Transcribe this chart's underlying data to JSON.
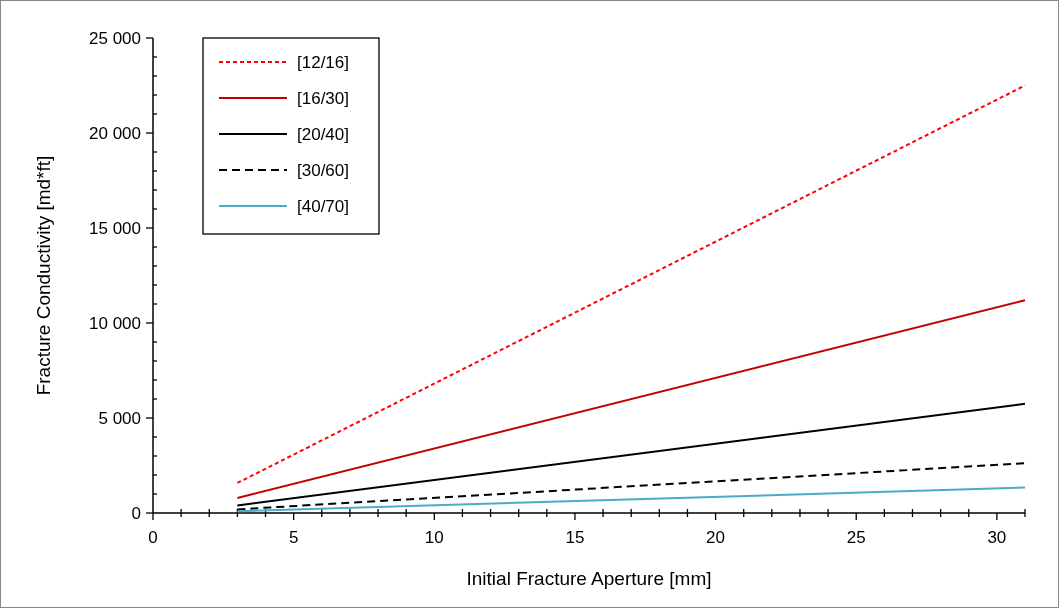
{
  "chart_data": {
    "type": "line",
    "xlabel": "Initial Fracture Aperture [mm]",
    "ylabel": "Fracture Conductivity [md*ft]",
    "x": [
      3,
      31
    ],
    "xlim": [
      0,
      31
    ],
    "xticks": [
      0,
      {
        "value": 1,
        "label": null
      },
      {
        "value": 2,
        "label": null
      },
      {
        "value": 3,
        "label": null
      },
      {
        "value": 4,
        "label": null
      },
      5,
      {
        "value": 6,
        "label": null
      },
      {
        "value": 7,
        "label": null
      },
      {
        "value": 8,
        "label": null
      },
      {
        "value": 9,
        "label": null
      },
      10,
      {
        "value": 11,
        "label": null
      },
      {
        "value": 12,
        "label": null
      },
      {
        "value": 13,
        "label": null
      },
      {
        "value": 14,
        "label": null
      },
      15,
      {
        "value": 16,
        "label": null
      },
      {
        "value": 17,
        "label": null
      },
      {
        "value": 18,
        "label": null
      },
      {
        "value": 19,
        "label": null
      },
      20,
      {
        "value": 21,
        "label": null
      },
      {
        "value": 22,
        "label": null
      },
      {
        "value": 23,
        "label": null
      },
      {
        "value": 24,
        "label": null
      },
      25,
      {
        "value": 26,
        "label": null
      },
      {
        "value": 27,
        "label": null
      },
      {
        "value": 28,
        "label": null
      },
      {
        "value": 29,
        "label": null
      },
      30,
      {
        "value": 31,
        "label": null
      }
    ],
    "ylim": [
      0,
      25000
    ],
    "yticks": [
      0,
      {
        "value": 1000,
        "label": null
      },
      {
        "value": 2000,
        "label": null
      },
      {
        "value": 3000,
        "label": null
      },
      {
        "value": 4000,
        "label": null
      },
      {
        "value": 5000,
        "label": "5 000"
      },
      {
        "value": 6000,
        "label": null
      },
      {
        "value": 7000,
        "label": null
      },
      {
        "value": 8000,
        "label": null
      },
      {
        "value": 9000,
        "label": null
      },
      {
        "value": 10000,
        "label": "10 000"
      },
      {
        "value": 11000,
        "label": null
      },
      {
        "value": 12000,
        "label": null
      },
      {
        "value": 13000,
        "label": null
      },
      {
        "value": 14000,
        "label": null
      },
      {
        "value": 15000,
        "label": "15 000"
      },
      {
        "value": 16000,
        "label": null
      },
      {
        "value": 17000,
        "label": null
      },
      {
        "value": 18000,
        "label": null
      },
      {
        "value": 19000,
        "label": null
      },
      {
        "value": 20000,
        "label": "20 000"
      },
      {
        "value": 21000,
        "label": null
      },
      {
        "value": 22000,
        "label": null
      },
      {
        "value": 23000,
        "label": null
      },
      {
        "value": 24000,
        "label": null
      },
      {
        "value": 25000,
        "label": "25 000"
      }
    ],
    "legend": "top left",
    "grid": false,
    "series": [
      {
        "name": "[12/16]",
        "color": "#ff0000",
        "values": [
          1580,
          22500
        ],
        "line_style": "dotted"
      },
      {
        "name": "[16/30]",
        "color": "#c00000",
        "values": [
          790,
          11200
        ]
      },
      {
        "name": "[20/40]",
        "color": "#000000",
        "values": [
          400,
          5750
        ]
      },
      {
        "name": "[30/60]",
        "color": "#000000",
        "values": [
          190,
          2620
        ],
        "line_style": "dashed"
      },
      {
        "name": "[40/70]",
        "color": "#4bacc6",
        "values": [
          95,
          1340
        ]
      }
    ]
  }
}
